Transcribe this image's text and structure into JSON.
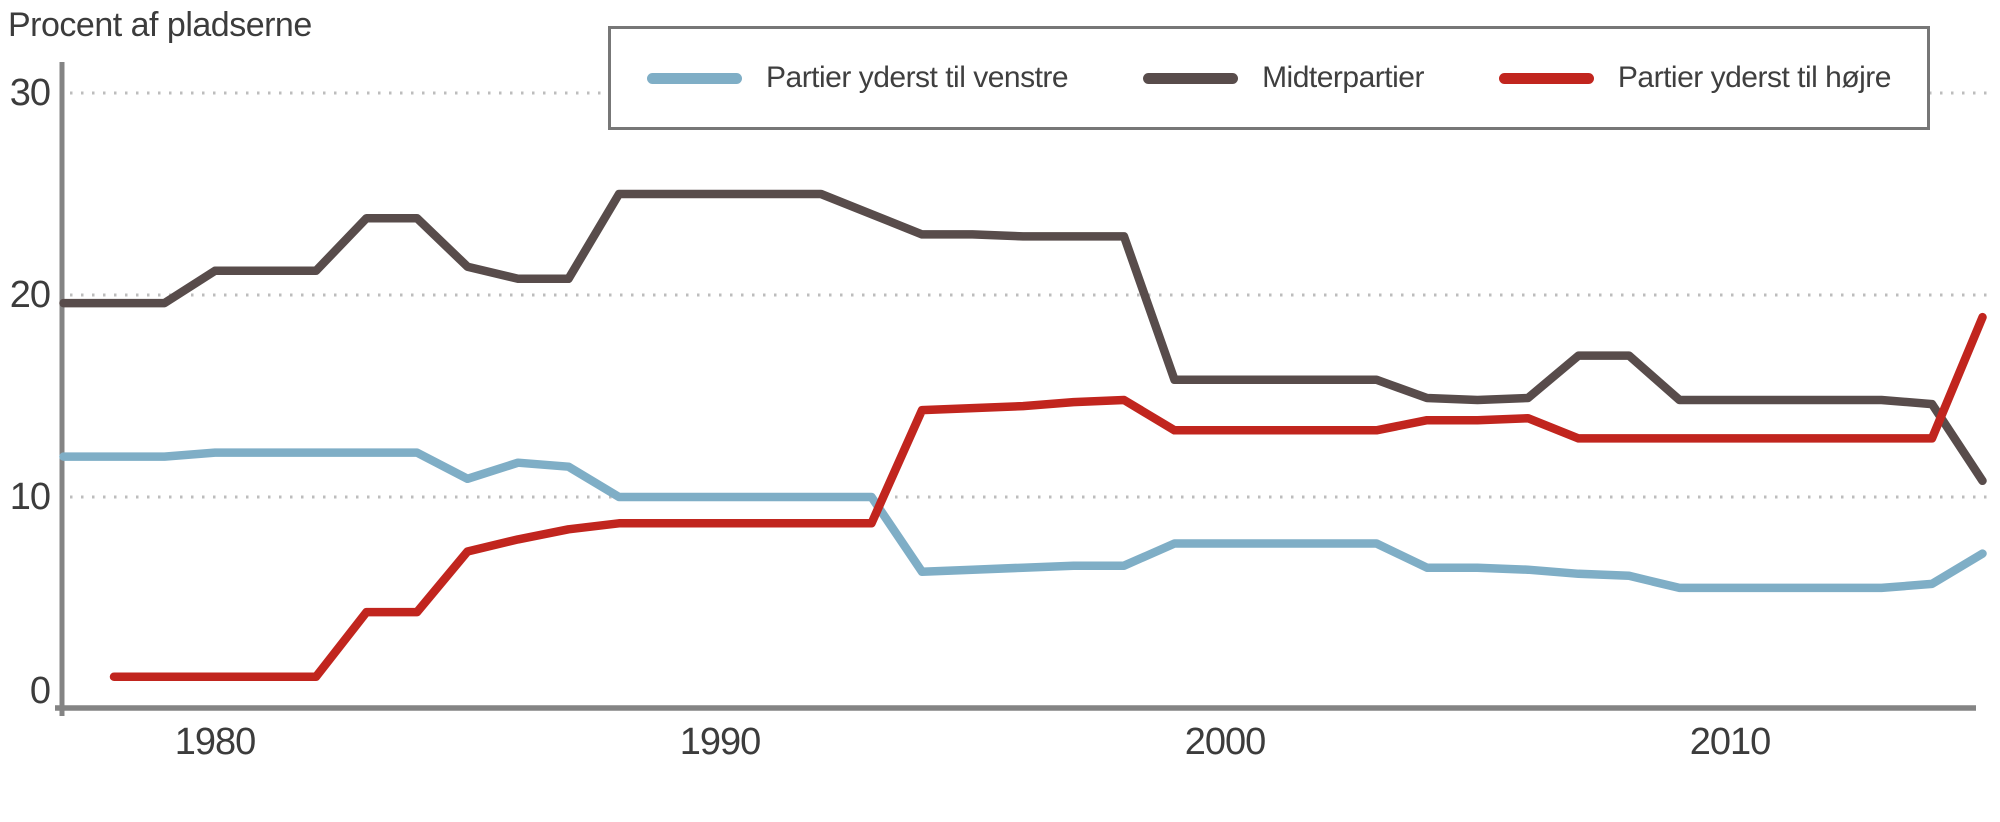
{
  "title": "Procent af pladserne",
  "axes": {
    "y_ticks": [
      {
        "label": "30",
        "value": 30
      },
      {
        "label": "20",
        "value": 20
      },
      {
        "label": "10",
        "value": 10
      },
      {
        "label": "0",
        "value": 0
      }
    ],
    "x_ticks": [
      {
        "label": "1980",
        "value": 1980
      },
      {
        "label": "1990",
        "value": 1990
      },
      {
        "label": "2000",
        "value": 2000
      },
      {
        "label": "2010",
        "value": 2010
      }
    ]
  },
  "legend": {
    "items": [
      {
        "label": "Partier yderst til venstre",
        "color": "#7FAEC6"
      },
      {
        "label": "Midterpartier",
        "color": "#584C4B"
      },
      {
        "label": "Partier yderst til højre",
        "color": "#C1251E"
      }
    ]
  },
  "colors": {
    "axis": "#848484",
    "gridline": "#BDBDBD",
    "text": "#3F3F3F",
    "legend_border": "#777777",
    "background": "#FFFFFF",
    "far_left": "#7FAEC6",
    "center": "#584C4B",
    "far_right": "#C1251E"
  },
  "chart_data": {
    "type": "line",
    "title": "Procent af pladserne",
    "ylabel": "Procent af pladserne",
    "xlabel": "",
    "xlim": [
      1977,
      2015.5
    ],
    "ylim": [
      0,
      32
    ],
    "y_gridlines": [
      10,
      20,
      30
    ],
    "grid": "horizontal dotted",
    "legend_position": "top",
    "series": [
      {
        "name": "Partier yderst til venstre",
        "color": "#7FAEC6",
        "start_year": 1977,
        "values": [
          12.0,
          12.0,
          12.0,
          12.2,
          12.2,
          12.2,
          12.2,
          12.2,
          10.9,
          11.7,
          11.5,
          10.0,
          10.0,
          10.0,
          10.0,
          10.0,
          10.0,
          6.3,
          6.4,
          6.5,
          6.6,
          6.6,
          7.7,
          7.7,
          7.7,
          7.7,
          7.7,
          6.5,
          6.5,
          6.4,
          6.2,
          6.1,
          5.5,
          5.5,
          5.5,
          5.5,
          5.5,
          5.7,
          7.2
        ]
      },
      {
        "name": "Midterpartier",
        "color": "#584C4B",
        "start_year": 1977,
        "values": [
          19.6,
          19.6,
          19.6,
          21.2,
          21.2,
          21.2,
          23.8,
          23.8,
          21.4,
          20.8,
          20.8,
          25.0,
          25.0,
          25.0,
          25.0,
          25.0,
          24.0,
          23.0,
          23.0,
          22.9,
          22.9,
          22.9,
          15.8,
          15.8,
          15.8,
          15.8,
          15.8,
          14.9,
          14.8,
          14.9,
          17.0,
          17.0,
          14.8,
          14.8,
          14.8,
          14.8,
          14.8,
          14.6,
          10.8
        ]
      },
      {
        "name": "Partier yderst til højre",
        "color": "#C1251E",
        "start_year": 1978,
        "values": [
          1.1,
          1.1,
          1.1,
          1.1,
          1.1,
          4.3,
          4.3,
          7.3,
          7.9,
          8.4,
          8.7,
          8.7,
          8.7,
          8.7,
          8.7,
          8.7,
          14.3,
          14.4,
          14.5,
          14.7,
          14.8,
          13.3,
          13.3,
          13.3,
          13.3,
          13.3,
          13.8,
          13.8,
          13.9,
          12.9,
          12.9,
          12.9,
          12.9,
          12.9,
          12.9,
          12.9,
          12.9,
          18.9
        ]
      }
    ]
  }
}
